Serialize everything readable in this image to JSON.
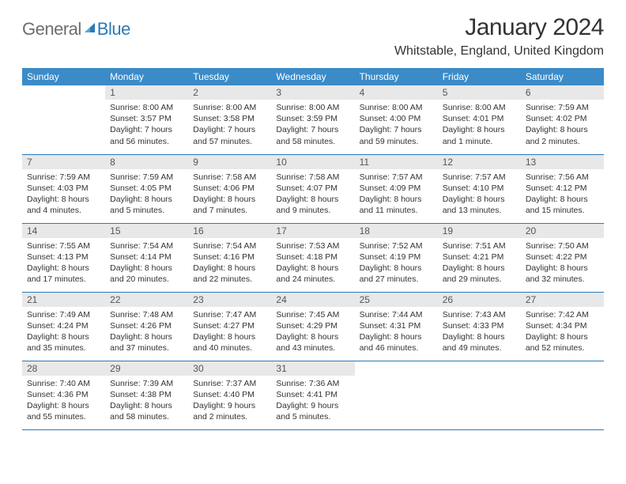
{
  "logo": {
    "part1": "General",
    "part2": "Blue"
  },
  "title": "January 2024",
  "location": "Whitstable, England, United Kingdom",
  "colors": {
    "header_bg": "#3b8bc8",
    "header_text": "#ffffff",
    "row_divider": "#2a7ab8",
    "daynum_bg": "#e8e8e8",
    "body_text": "#333333"
  },
  "day_headers": [
    "Sunday",
    "Monday",
    "Tuesday",
    "Wednesday",
    "Thursday",
    "Friday",
    "Saturday"
  ],
  "weeks": [
    [
      null,
      {
        "n": "1",
        "sr": "Sunrise: 8:00 AM",
        "ss": "Sunset: 3:57 PM",
        "d1": "Daylight: 7 hours",
        "d2": "and 56 minutes."
      },
      {
        "n": "2",
        "sr": "Sunrise: 8:00 AM",
        "ss": "Sunset: 3:58 PM",
        "d1": "Daylight: 7 hours",
        "d2": "and 57 minutes."
      },
      {
        "n": "3",
        "sr": "Sunrise: 8:00 AM",
        "ss": "Sunset: 3:59 PM",
        "d1": "Daylight: 7 hours",
        "d2": "and 58 minutes."
      },
      {
        "n": "4",
        "sr": "Sunrise: 8:00 AM",
        "ss": "Sunset: 4:00 PM",
        "d1": "Daylight: 7 hours",
        "d2": "and 59 minutes."
      },
      {
        "n": "5",
        "sr": "Sunrise: 8:00 AM",
        "ss": "Sunset: 4:01 PM",
        "d1": "Daylight: 8 hours",
        "d2": "and 1 minute."
      },
      {
        "n": "6",
        "sr": "Sunrise: 7:59 AM",
        "ss": "Sunset: 4:02 PM",
        "d1": "Daylight: 8 hours",
        "d2": "and 2 minutes."
      }
    ],
    [
      {
        "n": "7",
        "sr": "Sunrise: 7:59 AM",
        "ss": "Sunset: 4:03 PM",
        "d1": "Daylight: 8 hours",
        "d2": "and 4 minutes."
      },
      {
        "n": "8",
        "sr": "Sunrise: 7:59 AM",
        "ss": "Sunset: 4:05 PM",
        "d1": "Daylight: 8 hours",
        "d2": "and 5 minutes."
      },
      {
        "n": "9",
        "sr": "Sunrise: 7:58 AM",
        "ss": "Sunset: 4:06 PM",
        "d1": "Daylight: 8 hours",
        "d2": "and 7 minutes."
      },
      {
        "n": "10",
        "sr": "Sunrise: 7:58 AM",
        "ss": "Sunset: 4:07 PM",
        "d1": "Daylight: 8 hours",
        "d2": "and 9 minutes."
      },
      {
        "n": "11",
        "sr": "Sunrise: 7:57 AM",
        "ss": "Sunset: 4:09 PM",
        "d1": "Daylight: 8 hours",
        "d2": "and 11 minutes."
      },
      {
        "n": "12",
        "sr": "Sunrise: 7:57 AM",
        "ss": "Sunset: 4:10 PM",
        "d1": "Daylight: 8 hours",
        "d2": "and 13 minutes."
      },
      {
        "n": "13",
        "sr": "Sunrise: 7:56 AM",
        "ss": "Sunset: 4:12 PM",
        "d1": "Daylight: 8 hours",
        "d2": "and 15 minutes."
      }
    ],
    [
      {
        "n": "14",
        "sr": "Sunrise: 7:55 AM",
        "ss": "Sunset: 4:13 PM",
        "d1": "Daylight: 8 hours",
        "d2": "and 17 minutes."
      },
      {
        "n": "15",
        "sr": "Sunrise: 7:54 AM",
        "ss": "Sunset: 4:14 PM",
        "d1": "Daylight: 8 hours",
        "d2": "and 20 minutes."
      },
      {
        "n": "16",
        "sr": "Sunrise: 7:54 AM",
        "ss": "Sunset: 4:16 PM",
        "d1": "Daylight: 8 hours",
        "d2": "and 22 minutes."
      },
      {
        "n": "17",
        "sr": "Sunrise: 7:53 AM",
        "ss": "Sunset: 4:18 PM",
        "d1": "Daylight: 8 hours",
        "d2": "and 24 minutes."
      },
      {
        "n": "18",
        "sr": "Sunrise: 7:52 AM",
        "ss": "Sunset: 4:19 PM",
        "d1": "Daylight: 8 hours",
        "d2": "and 27 minutes."
      },
      {
        "n": "19",
        "sr": "Sunrise: 7:51 AM",
        "ss": "Sunset: 4:21 PM",
        "d1": "Daylight: 8 hours",
        "d2": "and 29 minutes."
      },
      {
        "n": "20",
        "sr": "Sunrise: 7:50 AM",
        "ss": "Sunset: 4:22 PM",
        "d1": "Daylight: 8 hours",
        "d2": "and 32 minutes."
      }
    ],
    [
      {
        "n": "21",
        "sr": "Sunrise: 7:49 AM",
        "ss": "Sunset: 4:24 PM",
        "d1": "Daylight: 8 hours",
        "d2": "and 35 minutes."
      },
      {
        "n": "22",
        "sr": "Sunrise: 7:48 AM",
        "ss": "Sunset: 4:26 PM",
        "d1": "Daylight: 8 hours",
        "d2": "and 37 minutes."
      },
      {
        "n": "23",
        "sr": "Sunrise: 7:47 AM",
        "ss": "Sunset: 4:27 PM",
        "d1": "Daylight: 8 hours",
        "d2": "and 40 minutes."
      },
      {
        "n": "24",
        "sr": "Sunrise: 7:45 AM",
        "ss": "Sunset: 4:29 PM",
        "d1": "Daylight: 8 hours",
        "d2": "and 43 minutes."
      },
      {
        "n": "25",
        "sr": "Sunrise: 7:44 AM",
        "ss": "Sunset: 4:31 PM",
        "d1": "Daylight: 8 hours",
        "d2": "and 46 minutes."
      },
      {
        "n": "26",
        "sr": "Sunrise: 7:43 AM",
        "ss": "Sunset: 4:33 PM",
        "d1": "Daylight: 8 hours",
        "d2": "and 49 minutes."
      },
      {
        "n": "27",
        "sr": "Sunrise: 7:42 AM",
        "ss": "Sunset: 4:34 PM",
        "d1": "Daylight: 8 hours",
        "d2": "and 52 minutes."
      }
    ],
    [
      {
        "n": "28",
        "sr": "Sunrise: 7:40 AM",
        "ss": "Sunset: 4:36 PM",
        "d1": "Daylight: 8 hours",
        "d2": "and 55 minutes."
      },
      {
        "n": "29",
        "sr": "Sunrise: 7:39 AM",
        "ss": "Sunset: 4:38 PM",
        "d1": "Daylight: 8 hours",
        "d2": "and 58 minutes."
      },
      {
        "n": "30",
        "sr": "Sunrise: 7:37 AM",
        "ss": "Sunset: 4:40 PM",
        "d1": "Daylight: 9 hours",
        "d2": "and 2 minutes."
      },
      {
        "n": "31",
        "sr": "Sunrise: 7:36 AM",
        "ss": "Sunset: 4:41 PM",
        "d1": "Daylight: 9 hours",
        "d2": "and 5 minutes."
      },
      null,
      null,
      null
    ]
  ]
}
